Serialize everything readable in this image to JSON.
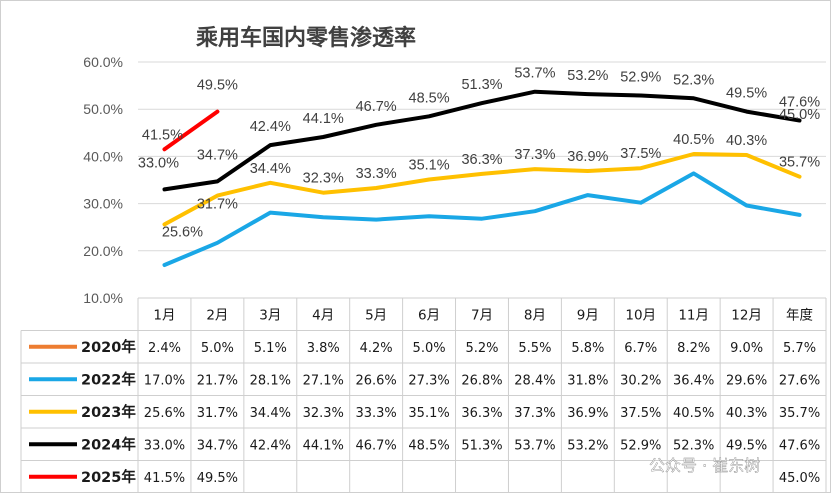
{
  "chart_data": {
    "type": "line",
    "title": "乘用车国内零售渗透率",
    "ylim": [
      10,
      60
    ],
    "yticks": [
      "10.0%",
      "20.0%",
      "30.0%",
      "40.0%",
      "50.0%",
      "60.0%"
    ],
    "categories": [
      "1月",
      "2月",
      "3月",
      "4月",
      "5月",
      "6月",
      "7月",
      "8月",
      "9月",
      "10月",
      "11月",
      "12月",
      "年度"
    ],
    "grid": true,
    "legend": "data-table",
    "series": [
      {
        "name": "2020年",
        "color": "#ed7d31",
        "plotted": false,
        "values": [
          2.4,
          5.0,
          5.1,
          3.8,
          4.2,
          5.0,
          5.2,
          5.5,
          5.8,
          6.7,
          8.2,
          9.0,
          5.7
        ],
        "labels": [
          "2.4%",
          "5.0%",
          "5.1%",
          "3.8%",
          "4.2%",
          "5.0%",
          "5.2%",
          "5.5%",
          "5.8%",
          "6.7%",
          "8.2%",
          "9.0%",
          "5.7%"
        ]
      },
      {
        "name": "2022年",
        "color": "#1aa7e6",
        "plotted": true,
        "values": [
          17.0,
          21.7,
          28.1,
          27.1,
          26.6,
          27.3,
          26.8,
          28.4,
          31.8,
          30.2,
          36.4,
          29.6,
          27.6
        ],
        "labels": [
          "17.0%",
          "21.7%",
          "28.1%",
          "27.1%",
          "26.6%",
          "27.3%",
          "26.8%",
          "28.4%",
          "31.8%",
          "30.2%",
          "36.4%",
          "29.6%",
          "27.6%"
        ]
      },
      {
        "name": "2023年",
        "color": "#ffc000",
        "plotted": true,
        "values": [
          25.6,
          31.7,
          34.4,
          32.3,
          33.3,
          35.1,
          36.3,
          37.3,
          36.9,
          37.5,
          40.5,
          40.3,
          35.7
        ],
        "labels": [
          "25.6%",
          "31.7%",
          "34.4%",
          "32.3%",
          "33.3%",
          "35.1%",
          "36.3%",
          "37.3%",
          "36.9%",
          "37.5%",
          "40.5%",
          "40.3%",
          "35.7%"
        ]
      },
      {
        "name": "2024年",
        "color": "#000000",
        "plotted": true,
        "values": [
          33.0,
          34.7,
          42.4,
          44.1,
          46.7,
          48.5,
          51.3,
          53.7,
          53.2,
          52.9,
          52.3,
          49.5,
          47.6
        ],
        "labels": [
          "33.0%",
          "34.7%",
          "42.4%",
          "44.1%",
          "46.7%",
          "48.5%",
          "51.3%",
          "53.7%",
          "53.2%",
          "52.9%",
          "52.3%",
          "49.5%",
          "47.6%"
        ]
      },
      {
        "name": "2025年",
        "color": "#ff0000",
        "plotted": true,
        "values": [
          41.5,
          49.5,
          null,
          null,
          null,
          null,
          null,
          null,
          null,
          null,
          null,
          null,
          45.0
        ],
        "labels": [
          "41.5%",
          "49.5%",
          "",
          "",
          "",
          "",
          "",
          "",
          "",
          "",
          "",
          "",
          "45.0%"
        ]
      }
    ]
  },
  "watermark": "公众号 · 崔东树"
}
